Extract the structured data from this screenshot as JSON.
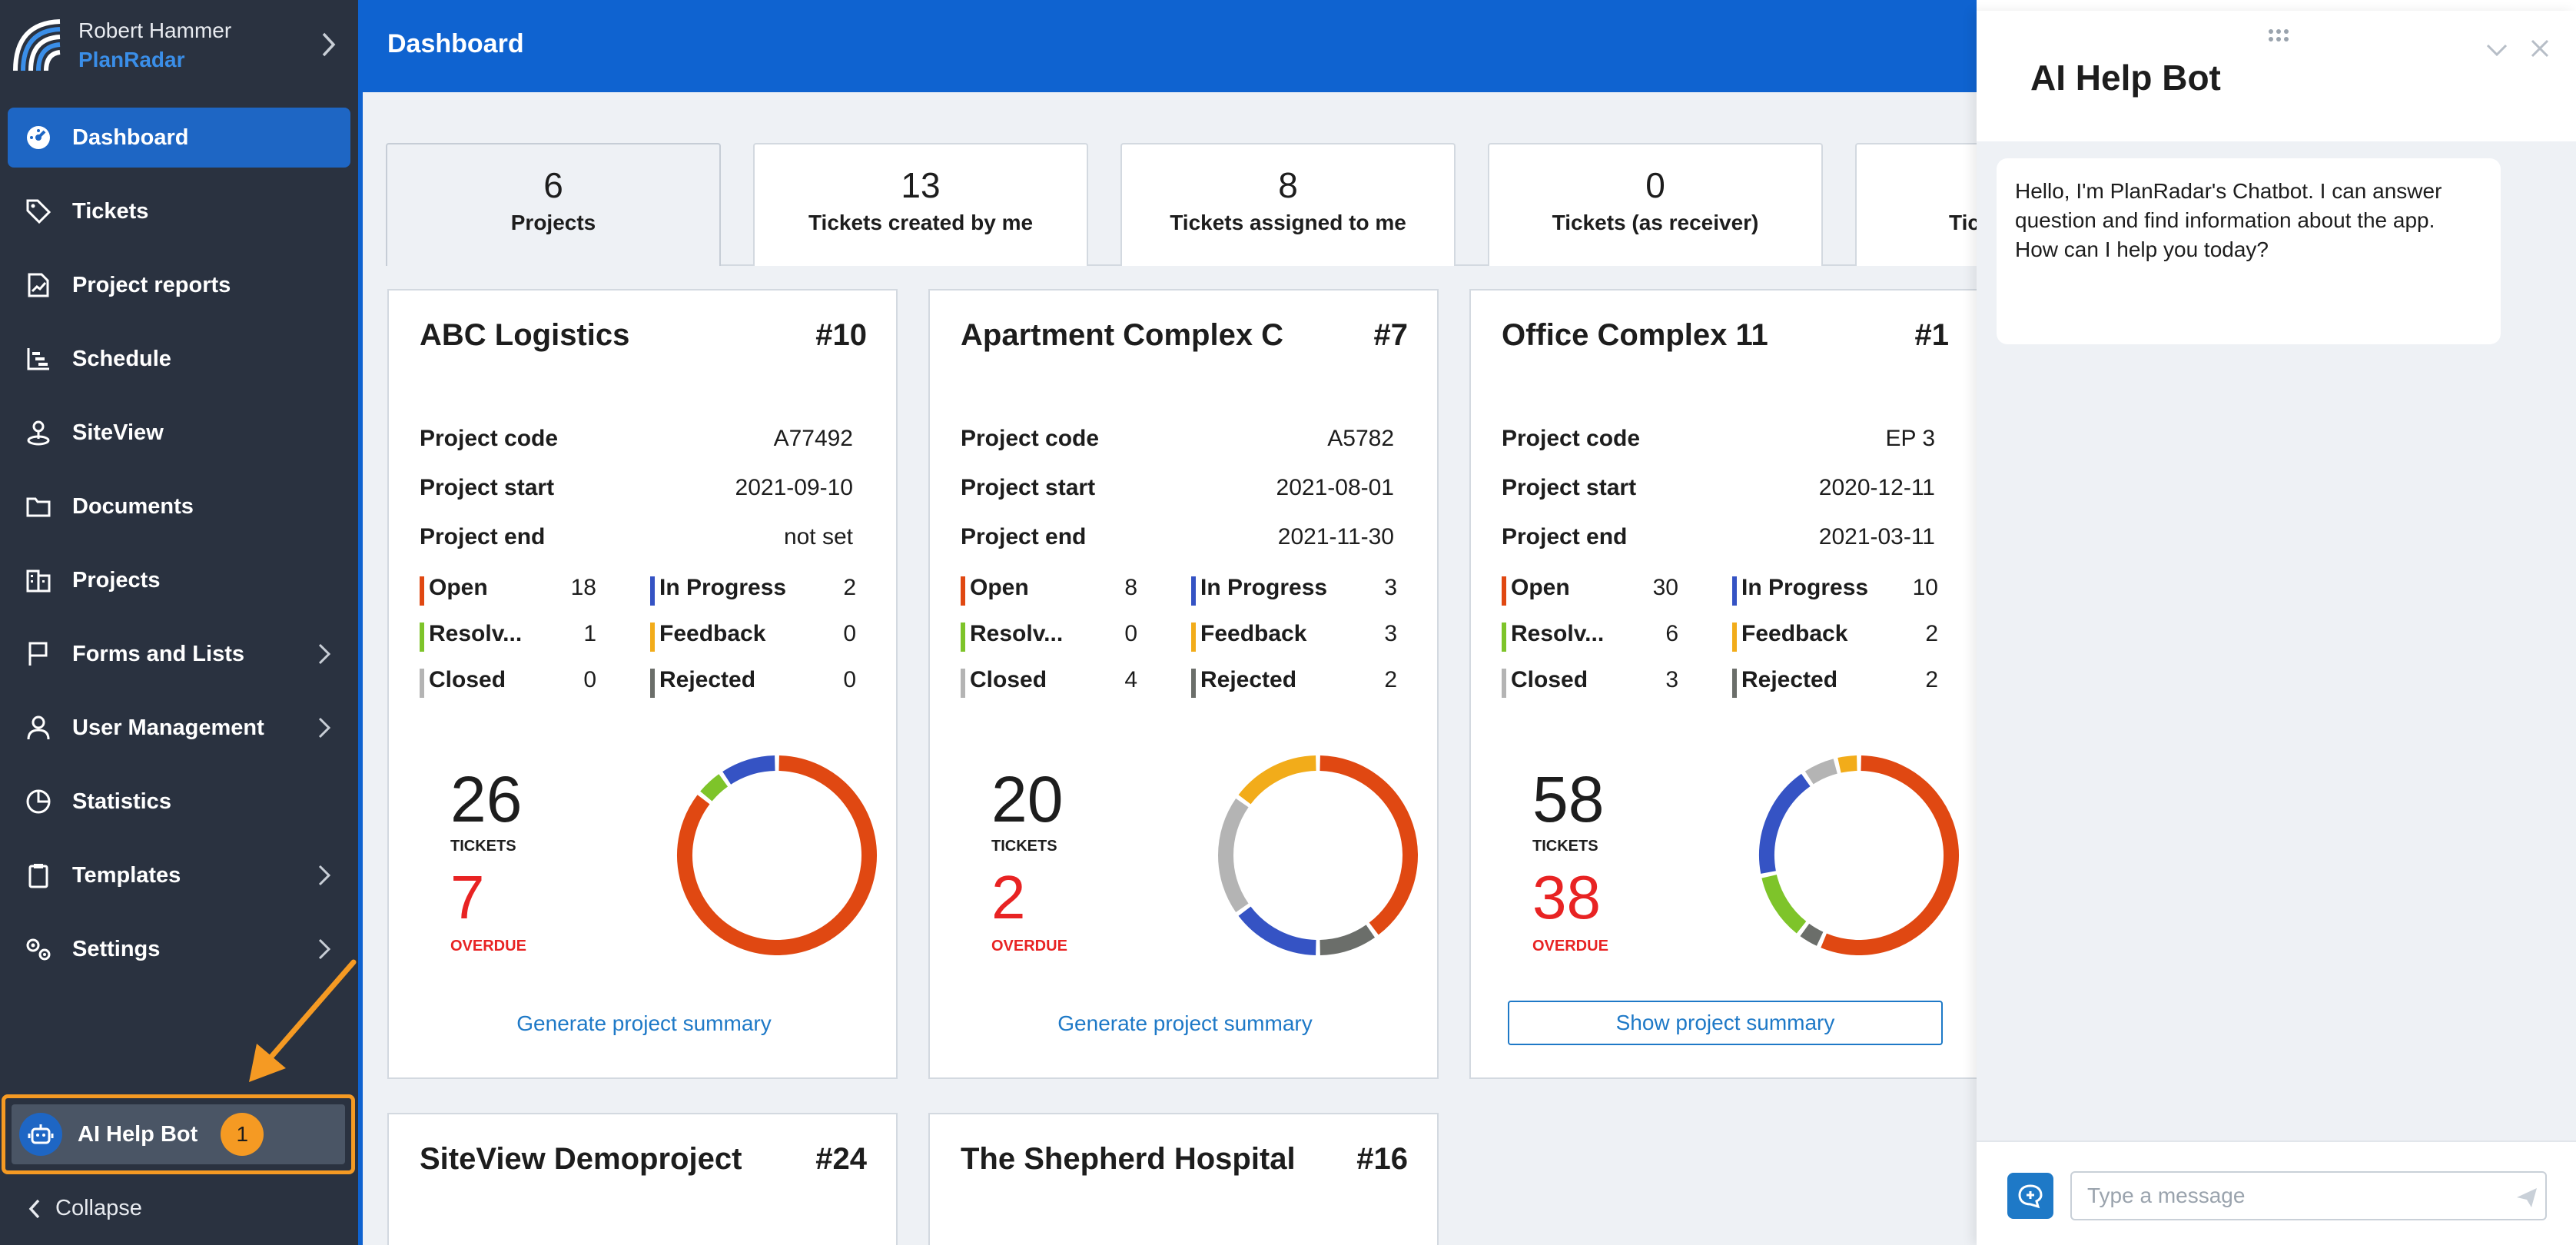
{
  "user": {
    "name": "Robert Hammer",
    "brand": "PlanRadar"
  },
  "sidebar": {
    "items": [
      {
        "label": "Dashboard",
        "icon": "dashboard-icon",
        "active": true
      },
      {
        "label": "Tickets",
        "icon": "tag-icon"
      },
      {
        "label": "Project reports",
        "icon": "report-icon"
      },
      {
        "label": "Schedule",
        "icon": "schedule-icon"
      },
      {
        "label": "SiteView",
        "icon": "siteview-icon"
      },
      {
        "label": "Documents",
        "icon": "folder-icon"
      },
      {
        "label": "Projects",
        "icon": "projects-icon"
      },
      {
        "label": "Forms and Lists",
        "icon": "flag-icon",
        "chevron": true
      },
      {
        "label": "User Management",
        "icon": "user-icon",
        "chevron": true
      },
      {
        "label": "Statistics",
        "icon": "pie-chart-icon"
      },
      {
        "label": "Templates",
        "icon": "clipboard-icon",
        "chevron": true
      },
      {
        "label": "Settings",
        "icon": "gears-icon",
        "chevron": true
      }
    ],
    "ai_bot": {
      "label": "AI Help Bot",
      "badge": "1"
    },
    "collapse": "Collapse"
  },
  "header": {
    "title": "Dashboard"
  },
  "tabs": [
    {
      "count": "6",
      "label": "Projects"
    },
    {
      "count": "13",
      "label": "Tickets created by me"
    },
    {
      "count": "8",
      "label": "Tickets assigned to me"
    },
    {
      "count": "0",
      "label": "Tickets (as receiver)"
    },
    {
      "count": "",
      "label": "Tick"
    }
  ],
  "labels": {
    "project_code": "Project code",
    "project_start": "Project start",
    "project_end": "Project end",
    "open": "Open",
    "in_progress": "In Progress",
    "resolved": "Resolv...",
    "feedback": "Feedback",
    "closed": "Closed",
    "rejected": "Rejected",
    "tickets": "TICKETS",
    "overdue": "OVERDUE"
  },
  "colors": {
    "open": "#e04812",
    "in_progress": "#3553c4",
    "resolved": "#7ec42a",
    "feedback": "#f2ac1a",
    "closed": "#b4b4b4",
    "rejected": "#6b6e6a",
    "accent": "#0f63d0"
  },
  "projects": [
    {
      "name": "ABC Logistics",
      "number": "#10",
      "code": "A77492",
      "start": "2021-09-10",
      "end": "not set",
      "open": "18",
      "in_progress": "2",
      "resolved": "1",
      "feedback": "0",
      "closed": "0",
      "rejected": "0",
      "tickets": "26",
      "overdue": "7",
      "action": "Generate project summary",
      "action_style": "link"
    },
    {
      "name": "Apartment Complex C",
      "number": "#7",
      "code": "A5782",
      "start": "2021-08-01",
      "end": "2021-11-30",
      "open": "8",
      "in_progress": "3",
      "resolved": "0",
      "feedback": "3",
      "closed": "4",
      "rejected": "2",
      "tickets": "20",
      "overdue": "2",
      "action": "Generate project summary",
      "action_style": "link"
    },
    {
      "name": "Office Complex 11",
      "number": "#1",
      "code": "EP 3",
      "start": "2020-12-11",
      "end": "2021-03-11",
      "open": "30",
      "in_progress": "10",
      "resolved": "6",
      "feedback": "2",
      "closed": "3",
      "rejected": "2",
      "tickets": "58",
      "overdue": "38",
      "action": "Show project summary",
      "action_style": "button"
    },
    {
      "name": "SiteView Demoproject",
      "number": "#24"
    },
    {
      "name": "The Shepherd Hospital",
      "number": "#16"
    }
  ],
  "chat": {
    "title": "AI Help Bot",
    "greeting": "Hello, I'm PlanRadar's Chatbot. I can answer question and find information about the app. How can I help you today?",
    "placeholder": "Type a message"
  }
}
